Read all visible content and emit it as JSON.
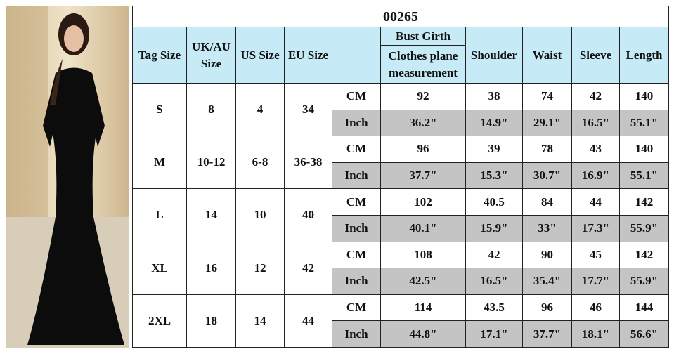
{
  "table": {
    "title": "00265",
    "headers": {
      "tag": "Tag Size",
      "uk": "UK/AU Size",
      "us": "US Size",
      "eu": "EU Size",
      "bust_top": "Bust Girth",
      "bust_bottom": "Clothes plane measurement",
      "shoulder": "Shoulder",
      "waist": "Waist",
      "sleeve": "Sleeve",
      "length": "Length"
    },
    "rows": [
      {
        "tag": "S",
        "uk": "8",
        "us": "4",
        "eu": "34",
        "cm": {
          "unit": "CM",
          "values": [
            92,
            38,
            74,
            42,
            140
          ]
        },
        "inch": {
          "unit": "Inch",
          "values": [
            "36.2\"",
            "14.9\"",
            "29.1\"",
            "16.5\"",
            "55.1\""
          ]
        }
      },
      {
        "tag": "M",
        "uk": "10-12",
        "us": "6-8",
        "eu": "36-38",
        "cm": {
          "unit": "CM",
          "values": [
            96,
            39,
            78,
            43,
            140
          ]
        },
        "inch": {
          "unit": "Inch",
          "values": [
            "37.7\"",
            "15.3\"",
            "30.7\"",
            "16.9\"",
            "55.1\""
          ]
        }
      },
      {
        "tag": "L",
        "uk": "14",
        "us": "10",
        "eu": "40",
        "cm": {
          "unit": "CM",
          "values": [
            102,
            40.5,
            84,
            44,
            142
          ]
        },
        "inch": {
          "unit": "Inch",
          "values": [
            "40.1\"",
            "15.9\"",
            "33\"",
            "17.3\"",
            "55.9\""
          ]
        }
      },
      {
        "tag": "XL",
        "uk": "16",
        "us": "12",
        "eu": "42",
        "cm": {
          "unit": "CM",
          "values": [
            108,
            42,
            90,
            45,
            142
          ]
        },
        "inch": {
          "unit": "Inch",
          "values": [
            "42.5\"",
            "16.5\"",
            "35.4\"",
            "17.7\"",
            "55.9\""
          ]
        }
      },
      {
        "tag": "2XL",
        "uk": "18",
        "us": "14",
        "eu": "44",
        "cm": {
          "unit": "CM",
          "values": [
            114,
            43.5,
            96,
            46,
            144
          ]
        },
        "inch": {
          "unit": "Inch",
          "values": [
            "44.8\"",
            "17.1\"",
            "37.7\"",
            "18.1\"",
            "56.6\""
          ]
        }
      }
    ]
  }
}
